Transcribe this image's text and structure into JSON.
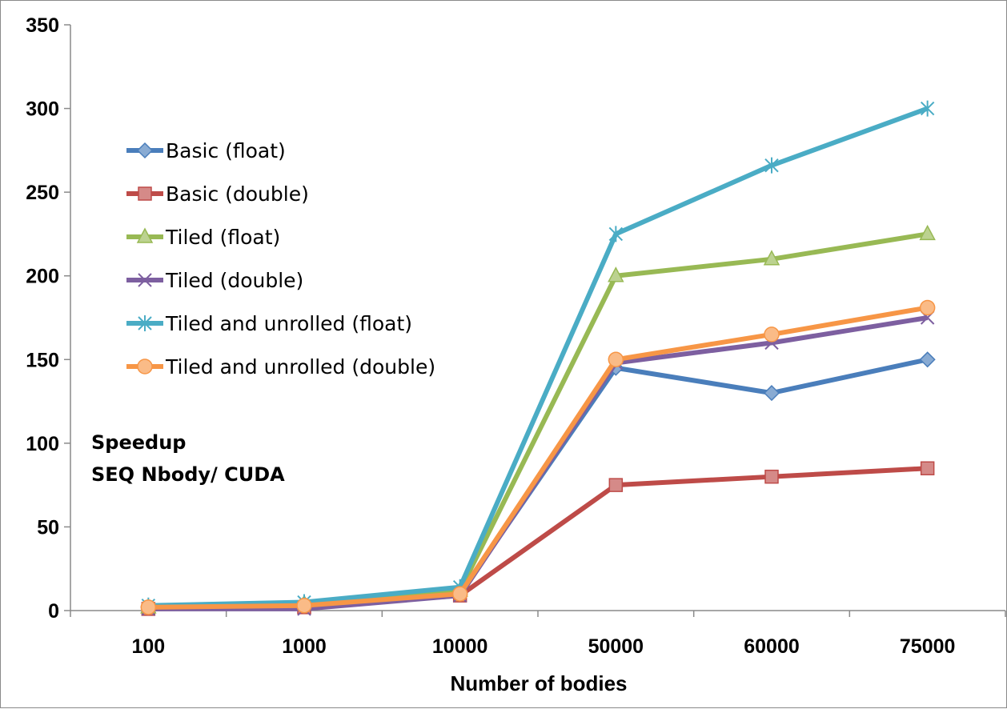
{
  "chart_data": {
    "type": "line",
    "title": "",
    "xlabel": "Number of bodies",
    "ylabel": "",
    "categories": [
      "100",
      "1000",
      "10000",
      "50000",
      "60000",
      "75000"
    ],
    "ylim": [
      0,
      350
    ],
    "yticks": [
      0,
      50,
      100,
      150,
      200,
      250,
      300,
      350
    ],
    "grid": false,
    "legend_position": "left",
    "annotation_lines": [
      "Speedup",
      "SEQ Nbody/ CUDA"
    ],
    "series": [
      {
        "name": "Basic (float)",
        "color": "#4a7ebb",
        "marker": "diamond",
        "values": [
          2,
          4,
          10,
          145,
          130,
          150
        ]
      },
      {
        "name": "Basic (double)",
        "color": "#be4b48",
        "marker": "square",
        "values": [
          1,
          2,
          9,
          75,
          80,
          85
        ]
      },
      {
        "name": "Tiled (float)",
        "color": "#98b954",
        "marker": "triangle",
        "values": [
          2,
          4,
          12,
          200,
          210,
          225
        ]
      },
      {
        "name": "Tiled (double)",
        "color": "#7d5fa0",
        "marker": "x",
        "values": [
          1,
          1,
          9,
          148,
          160,
          175
        ]
      },
      {
        "name": "Tiled and unrolled (float)",
        "color": "#4aacc5",
        "marker": "asterisk",
        "values": [
          3,
          5,
          14,
          225,
          266,
          300
        ]
      },
      {
        "name": "Tiled and unrolled (double)",
        "color": "#f79646",
        "marker": "circle",
        "values": [
          2,
          3,
          10,
          150,
          165,
          181
        ]
      }
    ]
  }
}
